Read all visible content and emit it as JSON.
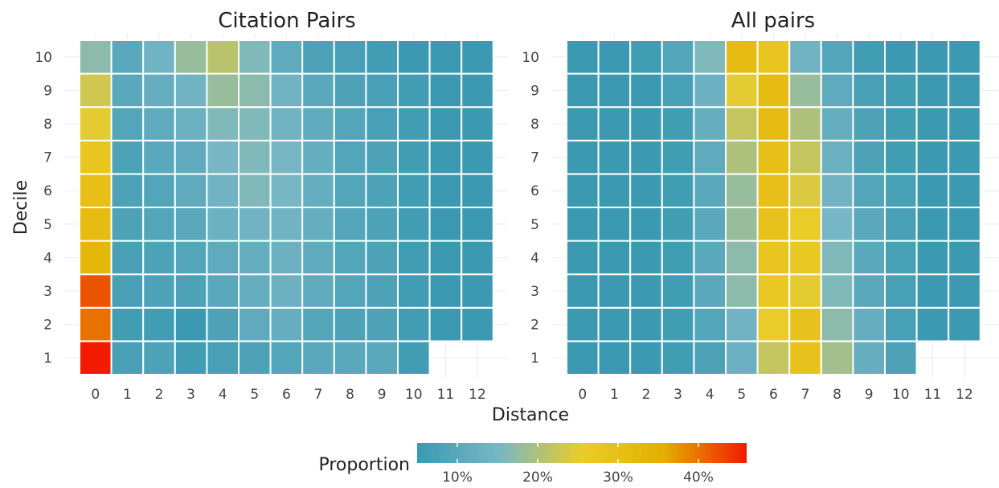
{
  "chart_data": [
    {
      "type": "heatmap",
      "title": "Citation Pairs",
      "xlabel": "Distance",
      "ylabel": "Decile",
      "x": [
        0,
        1,
        2,
        3,
        4,
        5,
        6,
        7,
        8,
        9,
        10,
        11,
        12
      ],
      "y": [
        1,
        2,
        3,
        4,
        5,
        6,
        7,
        8,
        9,
        10
      ],
      "values": [
        [
          0.46,
          0.07,
          0.08,
          0.06,
          0.07,
          0.08,
          0.09,
          0.1,
          0.1,
          0.1,
          0.06,
          null,
          null
        ],
        [
          0.4,
          0.06,
          0.06,
          0.05,
          0.08,
          0.11,
          0.12,
          0.09,
          0.08,
          0.08,
          0.06,
          0.05,
          0.05
        ],
        [
          0.42,
          0.07,
          0.08,
          0.08,
          0.1,
          0.12,
          0.13,
          0.11,
          0.09,
          0.08,
          0.06,
          0.05,
          0.05
        ],
        [
          0.33,
          0.07,
          0.08,
          0.09,
          0.11,
          0.12,
          0.13,
          0.11,
          0.09,
          0.08,
          0.06,
          0.05,
          0.05
        ],
        [
          0.31,
          0.08,
          0.09,
          0.1,
          0.13,
          0.14,
          0.14,
          0.12,
          0.09,
          0.08,
          0.06,
          0.05,
          0.05
        ],
        [
          0.3,
          0.08,
          0.09,
          0.11,
          0.14,
          0.16,
          0.15,
          0.12,
          0.09,
          0.08,
          0.06,
          0.05,
          0.05
        ],
        [
          0.28,
          0.08,
          0.1,
          0.11,
          0.15,
          0.16,
          0.15,
          0.12,
          0.09,
          0.08,
          0.06,
          0.05,
          0.05
        ],
        [
          0.25,
          0.09,
          0.11,
          0.13,
          0.16,
          0.16,
          0.14,
          0.11,
          0.09,
          0.07,
          0.06,
          0.05,
          0.05
        ],
        [
          0.23,
          0.1,
          0.12,
          0.14,
          0.18,
          0.17,
          0.14,
          0.1,
          0.08,
          0.07,
          0.06,
          0.05,
          0.05
        ],
        [
          0.17,
          0.1,
          0.14,
          0.18,
          0.21,
          0.16,
          0.11,
          0.08,
          0.07,
          0.06,
          0.05,
          0.05,
          0.05
        ]
      ]
    },
    {
      "type": "heatmap",
      "title": "All pairs",
      "xlabel": "Distance",
      "ylabel": "Decile",
      "x": [
        0,
        1,
        2,
        3,
        4,
        5,
        6,
        7,
        8,
        9,
        10,
        11,
        12
      ],
      "y": [
        1,
        2,
        3,
        4,
        5,
        6,
        7,
        8,
        9,
        10
      ],
      "values": [
        [
          0.05,
          0.05,
          0.05,
          0.06,
          0.08,
          0.13,
          0.22,
          0.29,
          0.19,
          0.12,
          0.08,
          null,
          null
        ],
        [
          0.05,
          0.05,
          0.05,
          0.06,
          0.09,
          0.14,
          0.26,
          0.29,
          0.17,
          0.12,
          0.07,
          0.05,
          0.05
        ],
        [
          0.05,
          0.05,
          0.05,
          0.06,
          0.1,
          0.17,
          0.27,
          0.25,
          0.16,
          0.1,
          0.07,
          0.05,
          0.05
        ],
        [
          0.05,
          0.05,
          0.05,
          0.06,
          0.1,
          0.17,
          0.28,
          0.27,
          0.16,
          0.1,
          0.07,
          0.05,
          0.05
        ],
        [
          0.05,
          0.05,
          0.05,
          0.06,
          0.1,
          0.18,
          0.29,
          0.26,
          0.15,
          0.1,
          0.07,
          0.05,
          0.05
        ],
        [
          0.05,
          0.05,
          0.05,
          0.06,
          0.1,
          0.18,
          0.3,
          0.24,
          0.14,
          0.09,
          0.07,
          0.05,
          0.05
        ],
        [
          0.05,
          0.05,
          0.05,
          0.06,
          0.11,
          0.2,
          0.3,
          0.22,
          0.13,
          0.08,
          0.06,
          0.05,
          0.05
        ],
        [
          0.05,
          0.05,
          0.05,
          0.06,
          0.12,
          0.22,
          0.31,
          0.2,
          0.12,
          0.08,
          0.06,
          0.05,
          0.05
        ],
        [
          0.05,
          0.05,
          0.05,
          0.07,
          0.13,
          0.25,
          0.31,
          0.18,
          0.11,
          0.07,
          0.06,
          0.05,
          0.05
        ],
        [
          0.05,
          0.05,
          0.06,
          0.09,
          0.16,
          0.31,
          0.28,
          0.14,
          0.09,
          0.06,
          0.05,
          0.05,
          0.05
        ]
      ]
    }
  ],
  "legend": {
    "title": "Proportion",
    "tick_values": [
      0.1,
      0.2,
      0.3,
      0.4
    ],
    "tick_labels": [
      "10%",
      "20%",
      "30%",
      "40%"
    ],
    "range": [
      0.05,
      0.46
    ],
    "colors": [
      "#3B9AB2",
      "#78B7C5",
      "#EBCC2A",
      "#E1AF00",
      "#F21A00"
    ]
  }
}
